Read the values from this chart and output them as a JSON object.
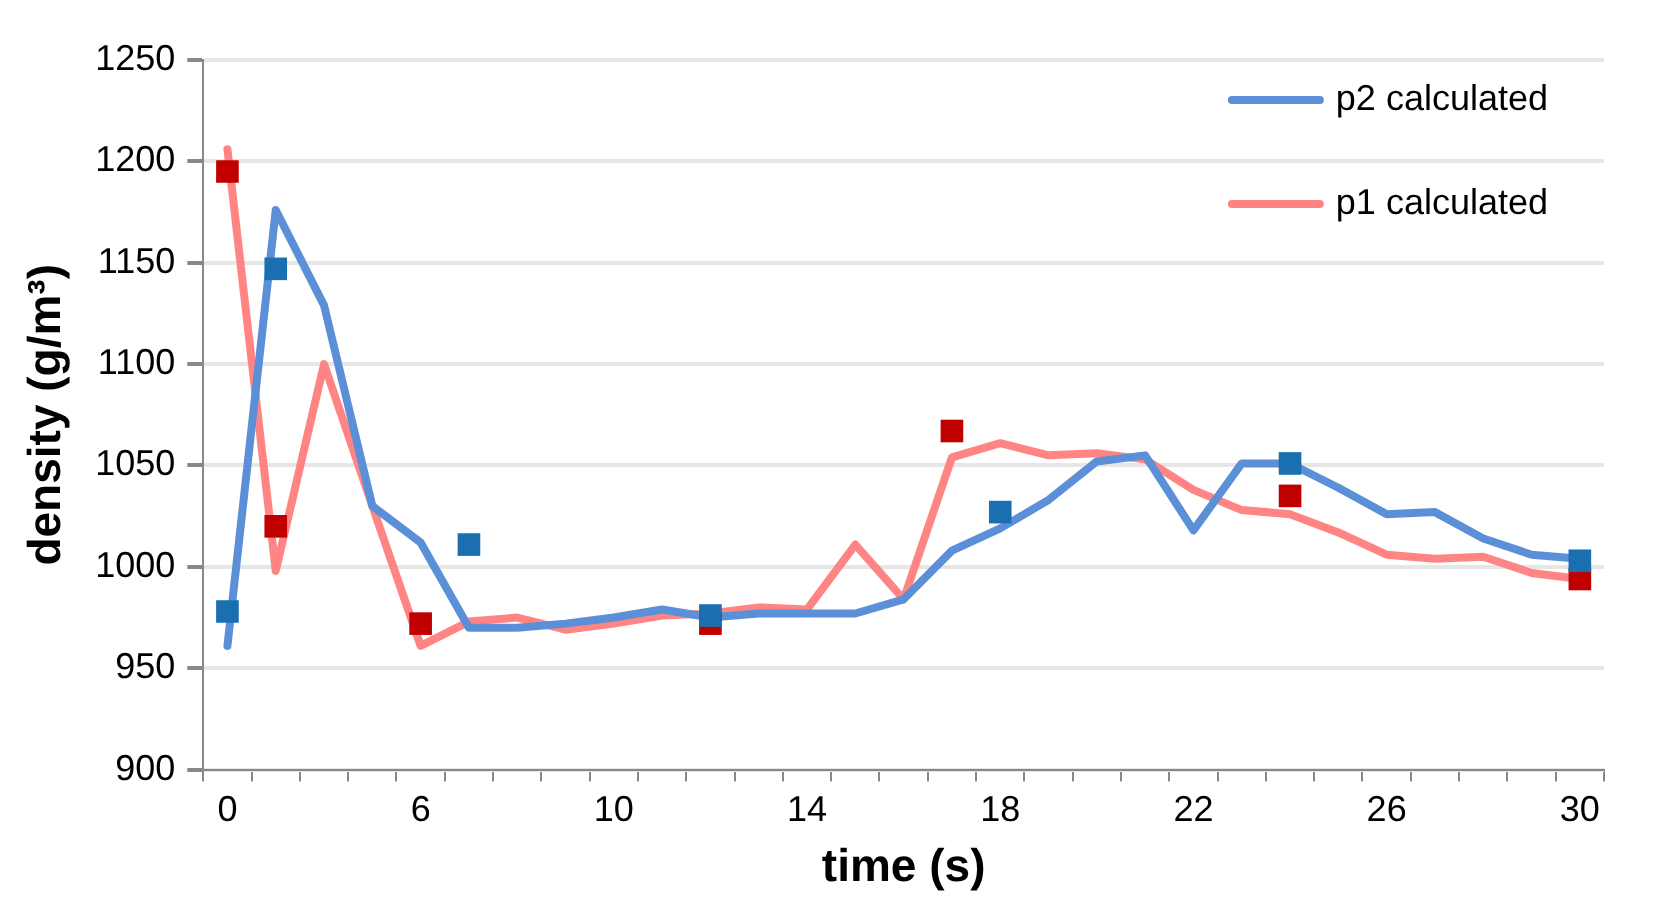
{
  "chart_data": {
    "type": "line",
    "xlabel": "time (s)",
    "ylabel": "density (g/m³)",
    "categories": [
      "0",
      null,
      null,
      null,
      "6",
      null,
      null,
      null,
      "10",
      null,
      null,
      null,
      "14",
      null,
      null,
      null,
      "18",
      null,
      null,
      null,
      "22",
      null,
      null,
      null,
      "26",
      null,
      null,
      null,
      "30"
    ],
    "ylim": [
      900,
      1250
    ],
    "yticks": [
      900,
      950,
      1000,
      1050,
      1100,
      1150,
      1200,
      1250
    ],
    "grid": "y",
    "legend": "top right",
    "series": [
      {
        "name": "p2 calculated",
        "color": "#5b8fd8",
        "marker": "none",
        "values": [
          961,
          1176,
          1129,
          1030,
          1012,
          970,
          970,
          972,
          975,
          979,
          975,
          977,
          977,
          977,
          984,
          1008,
          1019,
          1033,
          1052,
          1055,
          1018,
          1051,
          1051,
          1039,
          1026,
          1027,
          1014,
          1006,
          1004
        ]
      },
      {
        "name": "p1 calculated",
        "color": "#ff8585",
        "marker": "none",
        "values": [
          1206,
          998,
          1100,
          1030,
          961,
          973,
          975,
          969,
          972,
          976,
          977,
          980,
          979,
          1011,
          984,
          1054,
          1061,
          1055,
          1056,
          1053,
          1038,
          1028,
          1026,
          1017,
          1006,
          1004,
          1005,
          997,
          994
        ]
      },
      {
        "type": "scatter",
        "color": "#1a6fb0",
        "marker": "square",
        "values": [
          978,
          1147,
          null,
          null,
          null,
          1011,
          null,
          null,
          null,
          null,
          976,
          null,
          null,
          null,
          null,
          null,
          1027,
          null,
          null,
          null,
          null,
          null,
          1051,
          null,
          null,
          null,
          null,
          null,
          1003
        ]
      },
      {
        "type": "scatter",
        "color": "#c00000",
        "marker": "square",
        "values": [
          1195,
          1020,
          null,
          null,
          972,
          null,
          null,
          null,
          null,
          null,
          972,
          null,
          null,
          null,
          null,
          1067,
          null,
          null,
          null,
          null,
          null,
          null,
          1035,
          null,
          null,
          null,
          null,
          null,
          994
        ]
      }
    ]
  }
}
